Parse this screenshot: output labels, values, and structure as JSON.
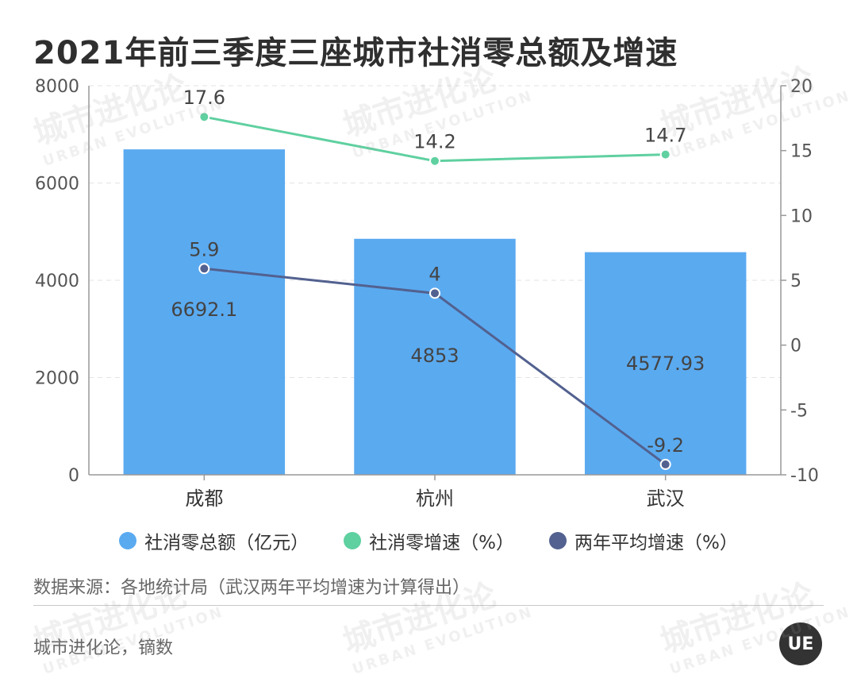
{
  "title": "2021年前三季度三座城市社消零总额及增速",
  "chart_data": {
    "type": "bar",
    "categories": [
      "成都",
      "杭州",
      "武汉"
    ],
    "series": [
      {
        "name": "社消零总额（亿元）",
        "type": "bar",
        "axis": "left",
        "values": [
          6692.1,
          4853,
          4577.93
        ],
        "labels": [
          "6692.1",
          "4853",
          "4577.93"
        ],
        "color": "#5aaaf0"
      },
      {
        "name": "社消零增速（%）",
        "type": "line",
        "axis": "right",
        "values": [
          17.6,
          14.2,
          14.7
        ],
        "labels": [
          "17.6",
          "14.2",
          "14.7"
        ],
        "color": "#5fd0a0"
      },
      {
        "name": "两年平均增速（%）",
        "type": "line",
        "axis": "right",
        "values": [
          5.9,
          4,
          -9.2
        ],
        "labels": [
          "5.9",
          "4",
          "-9.2"
        ],
        "color": "#52618f"
      }
    ],
    "y_left": {
      "min": 0,
      "max": 8000,
      "ticks": [
        "0",
        "2000",
        "4000",
        "6000",
        "8000"
      ]
    },
    "y_right": {
      "min": -10,
      "max": 20,
      "ticks": [
        "-10",
        "-5",
        "0",
        "5",
        "10",
        "15",
        "20"
      ]
    },
    "grid": true,
    "legend_position": "bottom"
  },
  "legend": [
    {
      "label": "社消零总额（亿元）",
      "color": "#5aaaf0"
    },
    {
      "label": "社消零增速（%）",
      "color": "#5fd0a0"
    },
    {
      "label": "两年平均增速（%）",
      "color": "#52618f"
    }
  ],
  "source": "数据来源：各地统计局（武汉两年平均增速为计算得出）",
  "credit": "城市进化论，镝数",
  "watermark": {
    "cn": "城市进化论",
    "en": "URBAN EVOLUTION"
  },
  "logo": "UE"
}
